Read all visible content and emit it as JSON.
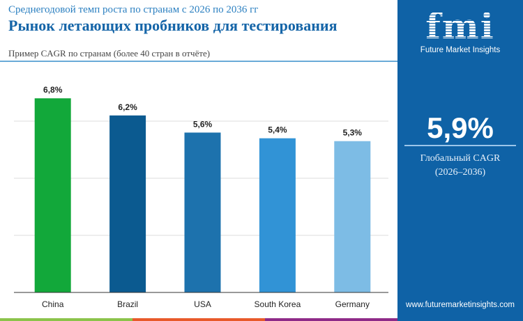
{
  "header": {
    "subtitle": "Среднегодовой темп роста по странам с 2026 по 2036 гг",
    "title": "Рынок летающих пробников для тестирования",
    "note": "Пример CAGR по странам (более 40 стран в отчёте)"
  },
  "panel": {
    "logo_text": "fmi",
    "logo_name": "Future Market Insights",
    "global_value": "5,9%",
    "global_label": "Глобальный CAGR",
    "global_period": "(2026–2036)",
    "url": "www.futuremarketinsights.com",
    "background": "#0f62a6"
  },
  "chart_data": {
    "type": "bar",
    "categories": [
      "China",
      "Brazil",
      "USA",
      "South Korea",
      "Germany"
    ],
    "values": [
      6.8,
      6.2,
      5.6,
      5.4,
      5.3
    ],
    "labels": [
      "6,8%",
      "6,2%",
      "5,6%",
      "5,4%",
      "5,3%"
    ],
    "colors": [
      "#12a83a",
      "#0b5a90",
      "#1d72ad",
      "#3193d6",
      "#7dbce5"
    ],
    "ylim": [
      0,
      8
    ],
    "grid": true,
    "unit": "%"
  },
  "footer_strip_colors": [
    "#8bc34a",
    "#e8592a",
    "#8e2a88"
  ]
}
